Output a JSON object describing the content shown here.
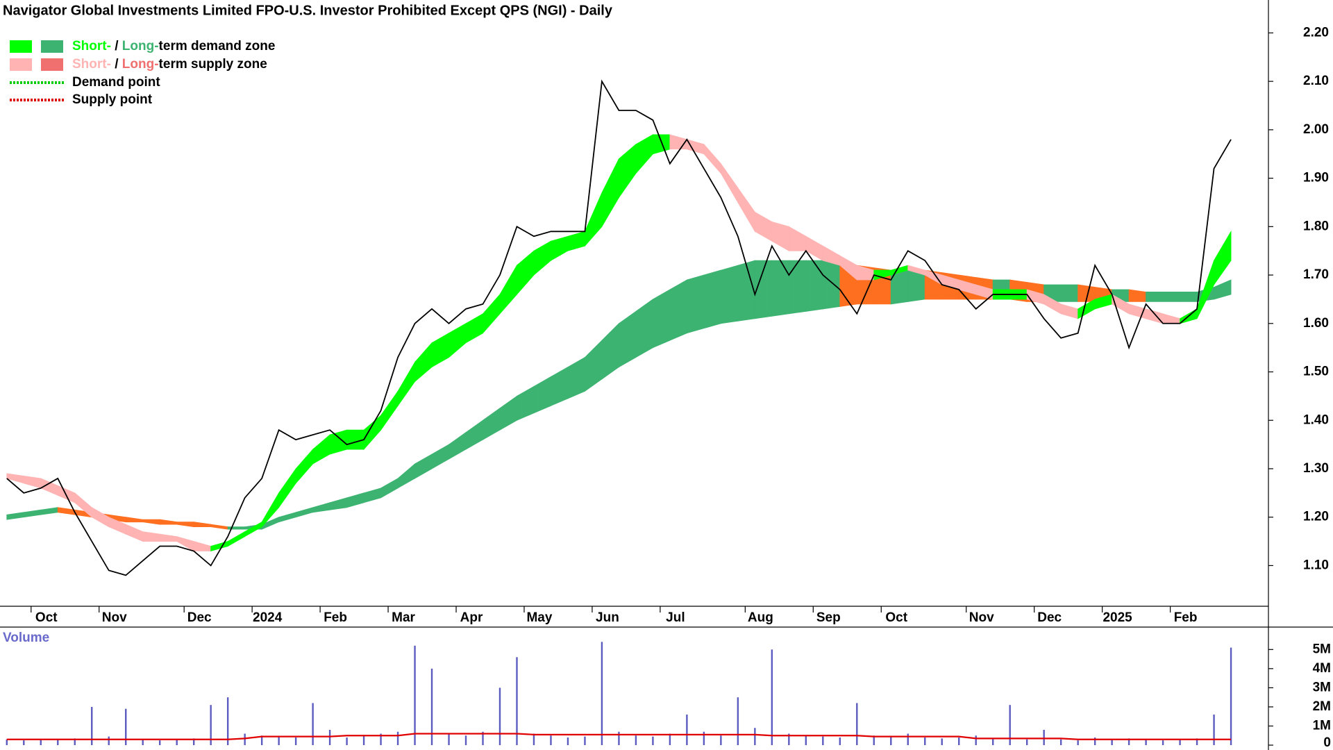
{
  "chart_data": [
    {
      "type": "line",
      "title": "Navigator Global Investments Limited FPO-U.S. Investor Prohibited Except QPS (NGI) - Daily",
      "categories": [
        null,
        null,
        "Oct",
        null,
        null,
        null,
        "Nov",
        null,
        null,
        null,
        null,
        "Dec",
        null,
        null,
        null,
        "2024",
        null,
        null,
        null,
        "Feb",
        null,
        null,
        null,
        "Mar",
        null,
        null,
        null,
        "Apr",
        null,
        null,
        null,
        "May",
        null,
        null,
        null,
        "Jun",
        null,
        null,
        null,
        "Jul",
        null,
        null,
        null,
        null,
        "Aug",
        null,
        null,
        null,
        "Sep",
        null,
        null,
        null,
        "Oct",
        null,
        null,
        null,
        null,
        "Nov",
        null,
        null,
        null,
        "Dec",
        null,
        null,
        null,
        "2025",
        null,
        null,
        null,
        "Feb",
        null,
        null,
        null
      ],
      "values": [
        1.28,
        1.25,
        1.26,
        1.28,
        1.21,
        1.15,
        1.09,
        1.08,
        1.11,
        1.14,
        1.14,
        1.13,
        1.1,
        1.16,
        1.24,
        1.28,
        1.38,
        1.36,
        1.37,
        1.38,
        1.35,
        1.36,
        1.42,
        1.53,
        1.6,
        1.63,
        1.6,
        1.63,
        1.64,
        1.7,
        1.8,
        1.78,
        1.79,
        1.79,
        1.79,
        2.1,
        2.04,
        2.04,
        2.02,
        1.93,
        1.98,
        1.92,
        1.86,
        1.78,
        1.66,
        1.76,
        1.7,
        1.75,
        1.7,
        1.67,
        1.62,
        1.7,
        1.69,
        1.75,
        1.73,
        1.68,
        1.67,
        1.63,
        1.66,
        1.66,
        1.66,
        1.61,
        1.57,
        1.58,
        1.72,
        1.66,
        1.55,
        1.64,
        1.6,
        1.6,
        1.63,
        1.92,
        1.98
      ],
      "color": "#000000",
      "short_term_zone": {
        "upper": [
          1.29,
          1.285,
          1.28,
          1.265,
          1.25,
          1.22,
          1.2,
          1.185,
          1.17,
          1.165,
          1.16,
          1.15,
          1.14,
          1.15,
          1.17,
          1.19,
          1.25,
          1.3,
          1.34,
          1.37,
          1.38,
          1.38,
          1.41,
          1.46,
          1.52,
          1.56,
          1.58,
          1.6,
          1.62,
          1.66,
          1.72,
          1.75,
          1.77,
          1.78,
          1.79,
          1.87,
          1.94,
          1.97,
          1.99,
          1.99,
          1.98,
          1.97,
          1.93,
          1.88,
          1.83,
          1.81,
          1.8,
          1.78,
          1.76,
          1.74,
          1.72,
          1.71,
          1.71,
          1.72,
          1.71,
          1.7,
          1.69,
          1.68,
          1.67,
          1.67,
          1.67,
          1.66,
          1.64,
          1.63,
          1.65,
          1.66,
          1.64,
          1.63,
          1.62,
          1.61,
          1.63,
          1.73,
          1.79
        ],
        "lower": [
          1.28,
          1.27,
          1.26,
          1.245,
          1.23,
          1.2,
          1.18,
          1.165,
          1.15,
          1.15,
          1.15,
          1.13,
          1.13,
          1.14,
          1.16,
          1.18,
          1.22,
          1.27,
          1.31,
          1.33,
          1.34,
          1.34,
          1.38,
          1.43,
          1.48,
          1.51,
          1.53,
          1.56,
          1.58,
          1.62,
          1.66,
          1.7,
          1.73,
          1.75,
          1.76,
          1.8,
          1.86,
          1.91,
          1.95,
          1.96,
          1.96,
          1.95,
          1.91,
          1.85,
          1.79,
          1.77,
          1.75,
          1.75,
          1.73,
          1.72,
          1.69,
          1.69,
          1.7,
          1.71,
          1.7,
          1.68,
          1.67,
          1.66,
          1.65,
          1.65,
          1.65,
          1.64,
          1.62,
          1.61,
          1.63,
          1.64,
          1.62,
          1.61,
          1.6,
          1.6,
          1.61,
          1.68,
          1.73
        ],
        "demand_color": "#00ff00",
        "supply_color": "#ffb3b3"
      },
      "long_term_zone": {
        "upper": [
          1.205,
          1.21,
          1.215,
          1.22,
          1.215,
          1.21,
          1.205,
          1.2,
          1.195,
          1.195,
          1.19,
          1.19,
          1.185,
          1.18,
          1.18,
          1.185,
          1.2,
          1.21,
          1.22,
          1.23,
          1.24,
          1.25,
          1.26,
          1.28,
          1.31,
          1.33,
          1.35,
          1.375,
          1.4,
          1.425,
          1.45,
          1.47,
          1.49,
          1.51,
          1.53,
          1.565,
          1.6,
          1.625,
          1.65,
          1.67,
          1.69,
          1.7,
          1.71,
          1.72,
          1.73,
          1.73,
          1.73,
          1.73,
          1.73,
          1.725,
          1.72,
          1.715,
          1.71,
          1.71,
          1.71,
          1.705,
          1.7,
          1.695,
          1.69,
          1.69,
          1.685,
          1.68,
          1.68,
          1.68,
          1.675,
          1.67,
          1.67,
          1.665,
          1.665,
          1.665,
          1.665,
          1.675,
          1.69
        ],
        "lower": [
          1.195,
          1.2,
          1.205,
          1.21,
          1.205,
          1.2,
          1.195,
          1.19,
          1.19,
          1.185,
          1.185,
          1.18,
          1.18,
          1.175,
          1.175,
          1.175,
          1.19,
          1.2,
          1.21,
          1.215,
          1.22,
          1.23,
          1.24,
          1.26,
          1.28,
          1.3,
          1.32,
          1.34,
          1.36,
          1.38,
          1.4,
          1.415,
          1.43,
          1.445,
          1.46,
          1.485,
          1.51,
          1.53,
          1.55,
          1.565,
          1.58,
          1.59,
          1.6,
          1.605,
          1.61,
          1.615,
          1.62,
          1.625,
          1.63,
          1.635,
          1.64,
          1.64,
          1.64,
          1.645,
          1.65,
          1.65,
          1.65,
          1.65,
          1.65,
          1.65,
          1.645,
          1.645,
          1.645,
          1.645,
          1.645,
          1.645,
          1.645,
          1.645,
          1.645,
          1.645,
          1.645,
          1.65,
          1.66
        ],
        "demand_color": "#3cb371",
        "supply_color": "#ff6f20"
      },
      "ylim": [
        1.016,
        2.268
      ],
      "yticks": [
        {
          "value": 1.1,
          "label": "1.10"
        },
        {
          "value": 1.2,
          "label": "1.20"
        },
        {
          "value": 1.3,
          "label": "1.30"
        },
        {
          "value": 1.4,
          "label": "1.40"
        },
        {
          "value": 1.5,
          "label": "1.50"
        },
        {
          "value": 1.6,
          "label": "1.60"
        },
        {
          "value": 1.7,
          "label": "1.70"
        },
        {
          "value": 1.8,
          "label": "1.80"
        },
        {
          "value": 1.9,
          "label": "1.90"
        },
        {
          "value": 2.0,
          "label": "2.00"
        },
        {
          "value": 2.1,
          "label": "2.10"
        },
        {
          "value": 2.2,
          "label": "2.20"
        }
      ],
      "legend": [
        {
          "parts": [
            "Short-",
            " / ",
            "Long-",
            "term demand zone"
          ],
          "colors": [
            "#00ff00",
            "#000000",
            "#3cb371",
            "#000000"
          ],
          "swatches": [
            "#00ff00",
            "#3cb371"
          ]
        },
        {
          "parts": [
            "Short-",
            " / ",
            "Long-",
            "term supply zone"
          ],
          "colors": [
            "#ffb3b3",
            "#000000",
            "#f07070",
            "#000000"
          ],
          "swatches": [
            "#ffb3b3",
            "#f07070"
          ]
        },
        {
          "parts": [
            "Demand point"
          ],
          "colors": [
            "#000000"
          ],
          "dotted": "#00cc00"
        },
        {
          "parts": [
            "Supply point"
          ],
          "colors": [
            "#000000"
          ],
          "dotted": "#dd0000"
        }
      ]
    },
    {
      "type": "bar",
      "label": "Volume",
      "color": "#5c5cc0",
      "values": [
        300000,
        250000,
        280000,
        300000,
        350000,
        2000000,
        450000,
        1900000,
        300000,
        250000,
        300000,
        350000,
        2100000,
        2500000,
        600000,
        500000,
        450000,
        400000,
        2200000,
        800000,
        400000,
        500000,
        600000,
        700000,
        5200000,
        4000000,
        600000,
        500000,
        700000,
        3000000,
        4600000,
        600000,
        500000,
        400000,
        450000,
        5400000,
        700000,
        500000,
        450000,
        600000,
        1600000,
        700000,
        500000,
        2500000,
        900000,
        5000000,
        600000,
        500000,
        450000,
        400000,
        2200000,
        500000,
        450000,
        600000,
        400000,
        350000,
        400000,
        500000,
        350000,
        2100000,
        300000,
        800000,
        300000,
        250000,
        400000,
        300000,
        350000,
        300000,
        250000,
        300000,
        350000,
        1600000,
        5100000
      ],
      "average": {
        "color": "#e00000",
        "values": [
          300000,
          300000,
          300000,
          300000,
          300000,
          300000,
          300000,
          300000,
          300000,
          300000,
          300000,
          300000,
          300000,
          300000,
          350000,
          450000,
          450000,
          450000,
          450000,
          450000,
          500000,
          500000,
          500000,
          500000,
          600000,
          600000,
          600000,
          600000,
          600000,
          600000,
          600000,
          550000,
          550000,
          550000,
          550000,
          550000,
          550000,
          550000,
          550000,
          550000,
          550000,
          550000,
          550000,
          550000,
          550000,
          500000,
          500000,
          500000,
          500000,
          500000,
          500000,
          450000,
          450000,
          450000,
          450000,
          450000,
          450000,
          350000,
          350000,
          350000,
          350000,
          350000,
          350000,
          300000,
          300000,
          300000,
          300000,
          300000,
          300000,
          300000,
          300000,
          300000,
          300000
        ]
      },
      "ylim": [
        0,
        6100000
      ],
      "yticks": [
        0,
        {
          "value": 1000000,
          "label": "1M"
        },
        {
          "value": 2000000,
          "label": "2M"
        },
        {
          "value": 3000000,
          "label": "3M"
        },
        {
          "value": 4000000,
          "label": "4M"
        },
        {
          "value": 5000000,
          "label": "5M"
        }
      ]
    }
  ]
}
